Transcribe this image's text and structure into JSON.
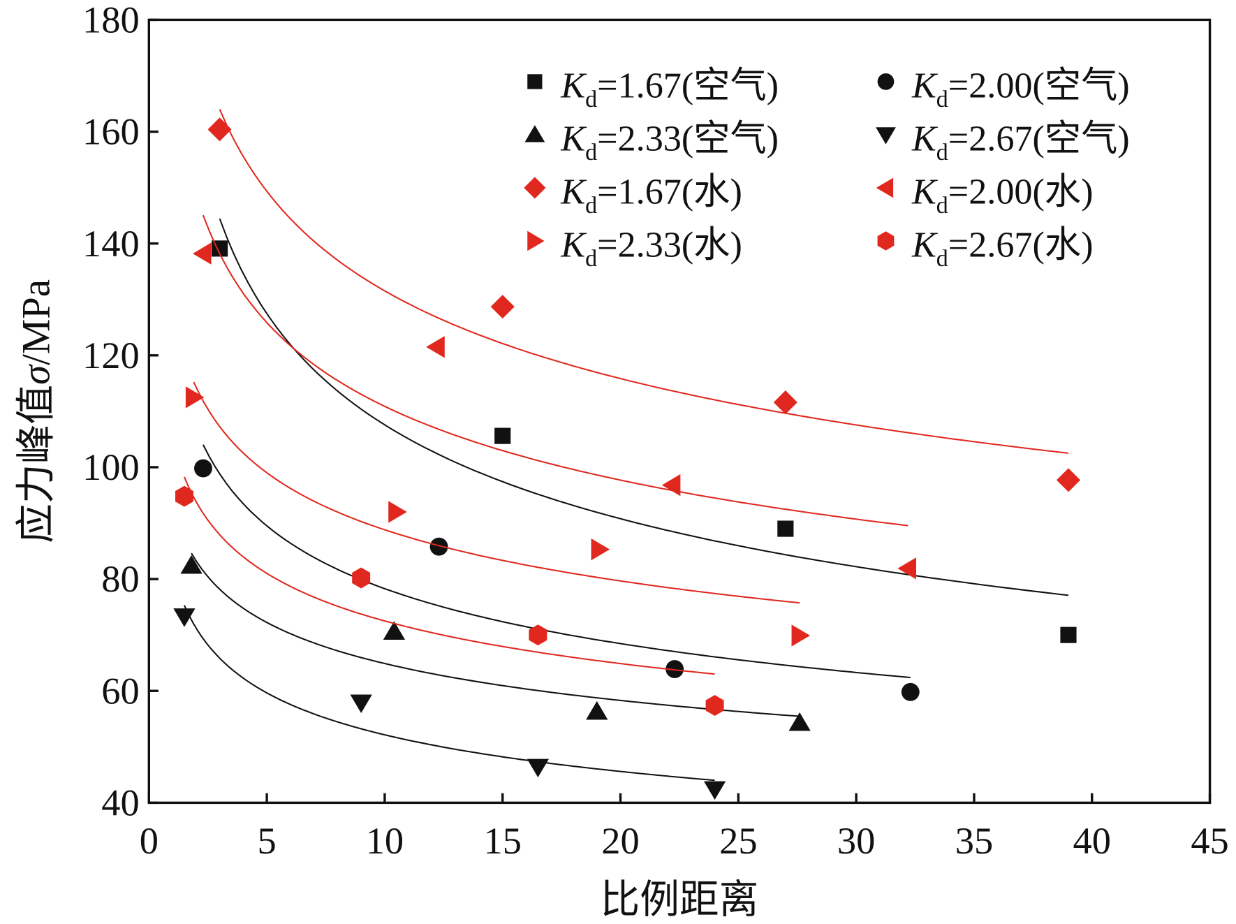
{
  "chart_data": {
    "type": "scatter",
    "title": "",
    "xlabel": "比例距离",
    "ylabel": {
      "prefix": "应力峰值",
      "symbol": "σ",
      "unit": "/MPa"
    },
    "xlim": [
      0,
      45
    ],
    "ylim": [
      40,
      180
    ],
    "xticks": [
      "0",
      "5",
      "10",
      "15",
      "20",
      "25",
      "30",
      "35",
      "40",
      "45"
    ],
    "yticks": [
      "40",
      "60",
      "80",
      "100",
      "120",
      "140",
      "160",
      "180"
    ],
    "grid": false,
    "legend_position": "top-right",
    "fit": "power-law curves per series",
    "series": [
      {
        "name": "=1.67(空气)",
        "color": "#111111",
        "marker": "square",
        "x": [
          3.0,
          15.0,
          27.0,
          39.0
        ],
        "y": [
          139.1,
          105.6,
          89.0,
          70.0
        ]
      },
      {
        "name": "=2.00(空气)",
        "color": "#111111",
        "marker": "circle",
        "x": [
          2.3,
          12.3,
          22.3,
          32.3
        ],
        "y": [
          99.8,
          85.8,
          63.9,
          59.8
        ]
      },
      {
        "name": "=2.33(空气)",
        "color": "#111111",
        "marker": "triangle-up",
        "x": [
          1.8,
          10.4,
          19.0,
          27.6
        ],
        "y": [
          82.4,
          70.6,
          56.3,
          54.3
        ]
      },
      {
        "name": "=2.67(空气)",
        "color": "#111111",
        "marker": "triangle-down",
        "x": [
          1.5,
          9.0,
          16.5,
          24.0
        ],
        "y": [
          73.3,
          57.9,
          46.4,
          42.4
        ]
      },
      {
        "name": "=1.67(水)",
        "color": "#e0281e",
        "marker": "diamond",
        "x": [
          3.0,
          15.0,
          27.0,
          39.0
        ],
        "y": [
          160.4,
          128.7,
          111.6,
          97.7
        ]
      },
      {
        "name": "=2.00(水)",
        "color": "#e0281e",
        "marker": "triangle-left",
        "x": [
          2.3,
          12.2,
          22.2,
          32.2
        ],
        "y": [
          138.2,
          121.5,
          96.8,
          81.9
        ]
      },
      {
        "name": "=2.33(水)",
        "color": "#e0281e",
        "marker": "triangle-right",
        "x": [
          1.9,
          10.5,
          19.1,
          27.6
        ],
        "y": [
          112.5,
          92.0,
          85.3,
          69.9
        ]
      },
      {
        "name": "=2.67(水)",
        "color": "#e0281e",
        "marker": "hexagon",
        "x": [
          1.5,
          9.0,
          16.5,
          24.0
        ],
        "y": [
          94.8,
          80.2,
          70.0,
          57.4
        ]
      }
    ],
    "legend_symbol": {
      "main": "K",
      "sub": "d"
    }
  }
}
